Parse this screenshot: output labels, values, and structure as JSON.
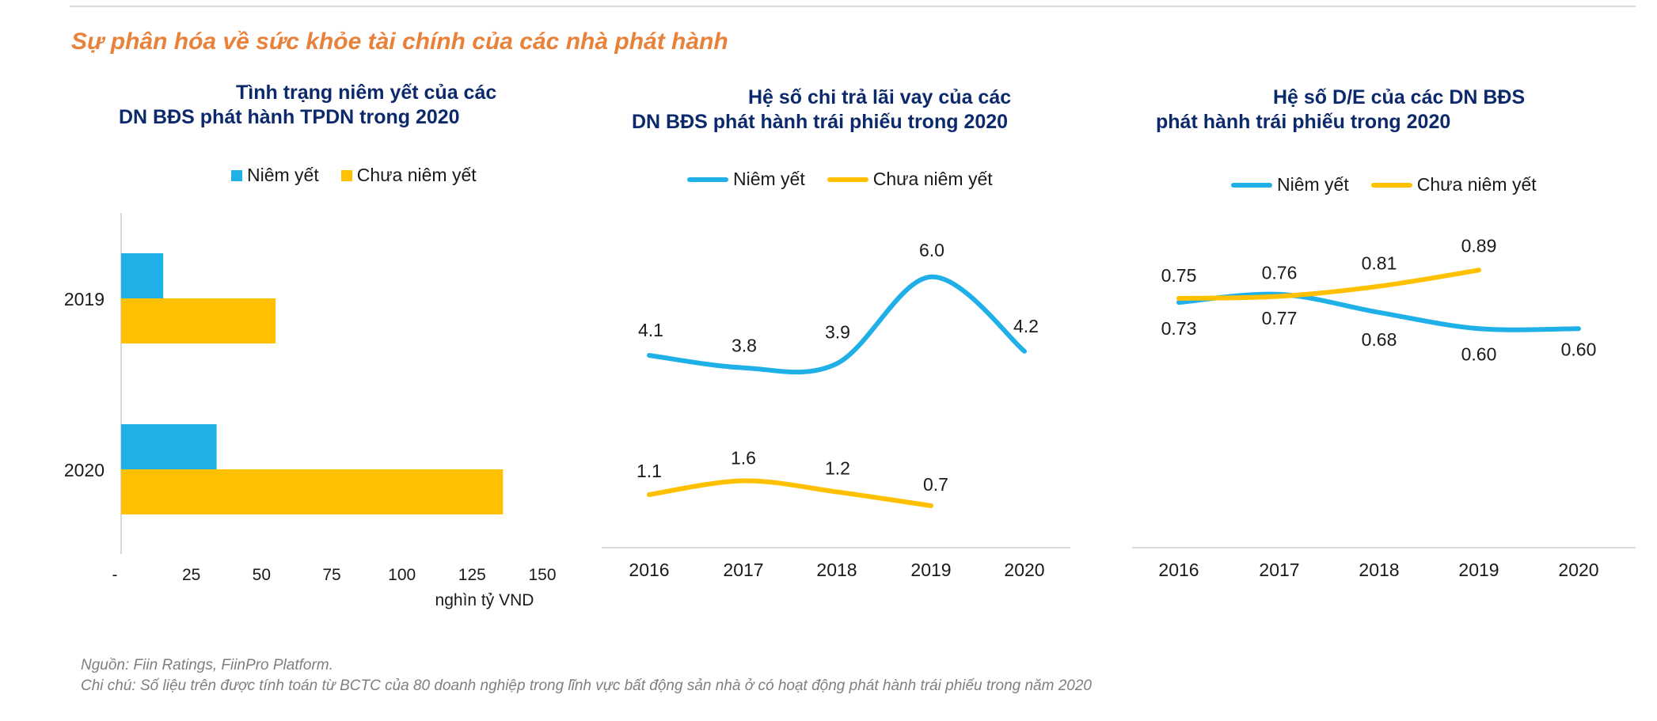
{
  "page": {
    "title": "Sự phân hóa về sức khỏe tài chính của các nhà phát hành",
    "source_note": "Nguồn: Fiin Ratings, FiinPro Platform.",
    "footnote": "Chi chú: Số liệu trên được tính toán từ BCTC của 80 doanh nghiệp trong lĩnh vực bất động sản nhà ở có hoạt động phát hành trái phiếu trong năm 2020"
  },
  "colors": {
    "listed": "#1fb0e8",
    "unlisted": "#ffc000",
    "title": "#e8823a",
    "heading": "#0c2a6b"
  },
  "chart_data": [
    {
      "type": "bar",
      "orientation": "horizontal",
      "title_line1": "Tình trạng niêm yết của các",
      "title_line2": "DN BĐS phát hành TPDN trong 2020",
      "categories": [
        "2019",
        "2020"
      ],
      "series": [
        {
          "name": "Niêm yết",
          "values": [
            15,
            34
          ]
        },
        {
          "name": "Chưa niêm yết",
          "values": [
            55,
            136
          ]
        }
      ],
      "xticks": [
        "-",
        "25",
        "50",
        "75",
        "100",
        "125",
        "150"
      ],
      "xlim": [
        0,
        150
      ],
      "xlabel": "nghìn tỷ VND",
      "legend": "top"
    },
    {
      "type": "line",
      "title_line1": "Hệ số chi trả lãi vay của các",
      "title_line2": "DN BĐS phát hành trái phiếu trong 2020",
      "categories": [
        "2016",
        "2017",
        "2018",
        "2019",
        "2020"
      ],
      "series": [
        {
          "name": "Niêm yết",
          "values": [
            4.1,
            3.8,
            3.9,
            6.0,
            4.2
          ],
          "labels": [
            "4.1",
            "3.8",
            "3.9",
            "6.0",
            "4.2"
          ]
        },
        {
          "name": "Chưa niêm yết",
          "values": [
            1.1,
            1.6,
            1.2,
            0.7,
            null
          ],
          "labels": [
            "1.1",
            "1.6",
            "1.2",
            "0.7",
            null
          ]
        }
      ],
      "ylim": [
        0,
        6.5
      ],
      "legend": "top"
    },
    {
      "type": "line",
      "title_line1": "Hệ số D/E của các DN BĐS",
      "title_line2": "phát hành trái phiếu trong 2020",
      "categories": [
        "2016",
        "2017",
        "2018",
        "2019",
        "2020"
      ],
      "series": [
        {
          "name": "Niêm yết",
          "values": [
            0.73,
            0.77,
            0.68,
            0.6,
            0.6
          ],
          "labels": [
            "0.73",
            "0.77",
            "0.68",
            "0.60",
            "0.60"
          ]
        },
        {
          "name": "Chưa niêm yết",
          "values": [
            0.75,
            0.76,
            0.81,
            0.89,
            null
          ],
          "labels": [
            "0.75",
            "0.76",
            "0.81",
            "0.89",
            null
          ]
        }
      ],
      "ylim": [
        0,
        1.0
      ],
      "legend": "top"
    }
  ]
}
